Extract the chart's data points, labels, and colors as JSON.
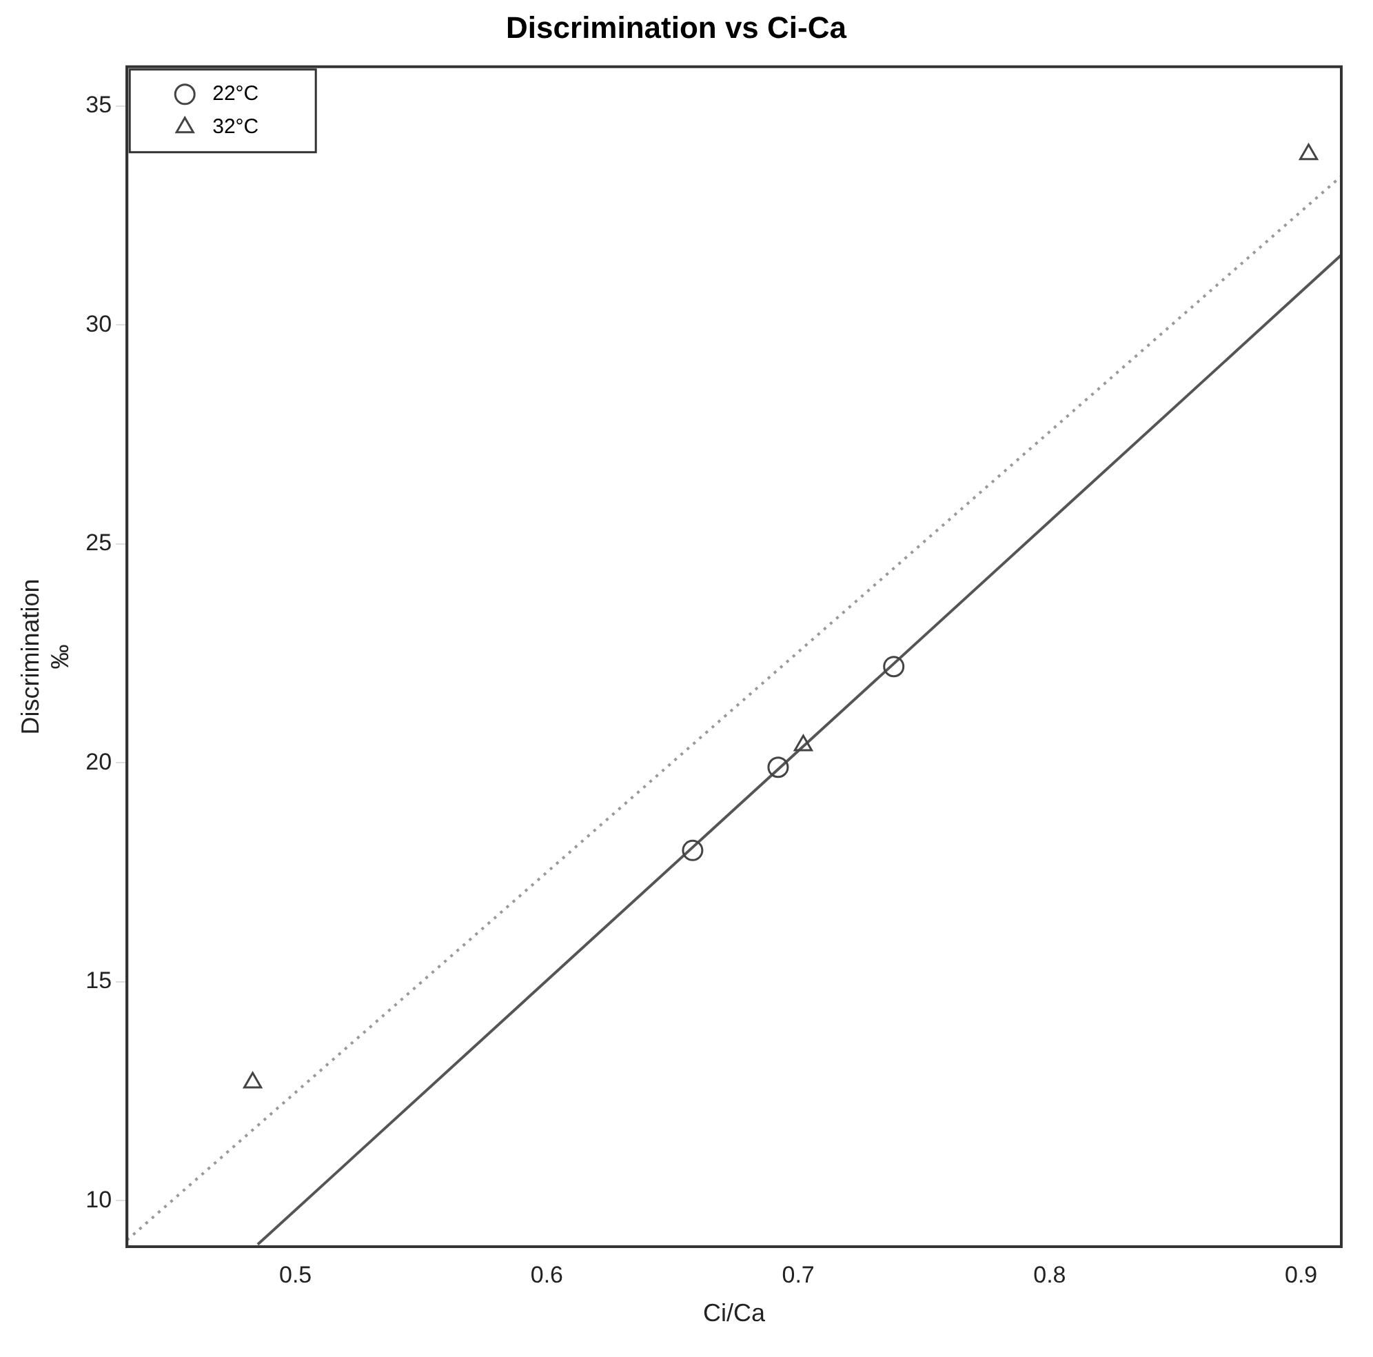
{
  "chart_data": {
    "type": "scatter",
    "title": "Discrimination vs Ci-Ca",
    "xlabel": "Ci/Ca",
    "ylabel": "Discrimination\n‰",
    "xlim": [
      0.433,
      0.916
    ],
    "ylim": [
      8.95,
      35.9
    ],
    "xticks": [
      0.5,
      0.6,
      0.7,
      0.8,
      0.9
    ],
    "yticks": [
      10,
      15,
      20,
      25,
      30,
      35
    ],
    "grid": false,
    "legend": "top left",
    "series": [
      {
        "name": "22°C",
        "color": "#444444",
        "marker": "circle",
        "x": [
          0.658,
          0.692,
          0.738
        ],
        "values": [
          18.0,
          19.9,
          22.2
        ]
      },
      {
        "name": "32°C",
        "color": "#444444",
        "marker": "triangle",
        "x": [
          0.483,
          0.702,
          0.903
        ],
        "values": [
          12.7,
          20.4,
          33.9
        ]
      },
      {
        "type": "line",
        "color": "#555555",
        "line_style": "solid",
        "marker": "none",
        "x": [
          0.485,
          0.916
        ],
        "values": [
          9.0,
          31.6
        ]
      },
      {
        "type": "line",
        "color": "#999999",
        "line_style": "dotted",
        "marker": "none",
        "x": [
          0.433,
          0.916
        ],
        "values": [
          9.1,
          33.4
        ]
      }
    ]
  }
}
